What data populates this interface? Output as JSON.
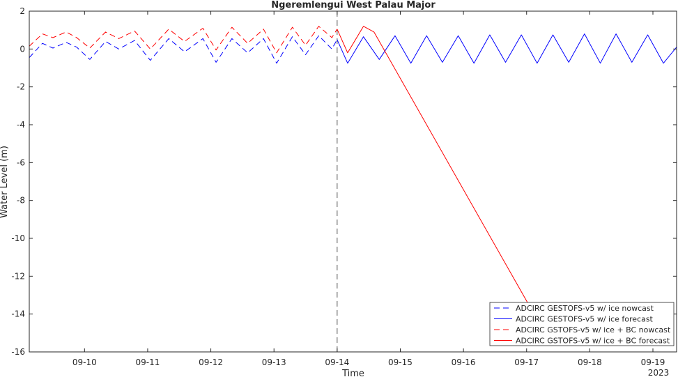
{
  "chart_data": {
    "type": "line",
    "title": "Ngeremlengui West Palau Major",
    "xlabel": "Time",
    "ylabel": "Water Level (m)",
    "year_label": "2023",
    "xlim": [
      "2023-09-09T03:00",
      "2023-09-19T09:00"
    ],
    "ylim": [
      -16,
      2
    ],
    "yticks": [
      2,
      0,
      -2,
      -4,
      -6,
      -8,
      -10,
      -12,
      -14,
      -16
    ],
    "xticks": [
      {
        "label": "09-10",
        "x": "2023-09-10"
      },
      {
        "label": "09-11",
        "x": "2023-09-11"
      },
      {
        "label": "09-12",
        "x": "2023-09-12"
      },
      {
        "label": "09-13",
        "x": "2023-09-13"
      },
      {
        "label": "09-14",
        "x": "2023-09-14"
      },
      {
        "label": "09-15",
        "x": "2023-09-15"
      },
      {
        "label": "09-16",
        "x": "2023-09-16"
      },
      {
        "label": "09-17",
        "x": "2023-09-17"
      },
      {
        "label": "09-18",
        "x": "2023-09-18"
      },
      {
        "label": "09-19",
        "x": "2023-09-19"
      }
    ],
    "grid": false,
    "nowcast_divider": "2023-09-14",
    "legend_position": "bottom-right",
    "series": [
      {
        "name": "ADCIRC GESTOFS-v5 w/ ice nowcast",
        "color": "#0000ff",
        "style": "dashed",
        "x": [
          "2023-09-09T03:00",
          "2023-09-09T08:00",
          "2023-09-09T12:00",
          "2023-09-09T17:00",
          "2023-09-09T21:00",
          "2023-09-10T02:00",
          "2023-09-10T08:00",
          "2023-09-10T13:00",
          "2023-09-10T19:00",
          "2023-09-11T01:00",
          "2023-09-11T08:00",
          "2023-09-11T14:00",
          "2023-09-11T21:00",
          "2023-09-12T02:00",
          "2023-09-12T08:00",
          "2023-09-12T14:00",
          "2023-09-12T20:00",
          "2023-09-13T01:00",
          "2023-09-13T07:00",
          "2023-09-13T12:00",
          "2023-09-13T17:00",
          "2023-09-13T22:00",
          "2023-09-14T00:00"
        ],
        "y": [
          -0.45,
          0.3,
          0.05,
          0.35,
          0.1,
          -0.55,
          0.4,
          0.0,
          0.45,
          -0.6,
          0.55,
          -0.15,
          0.55,
          -0.7,
          0.55,
          -0.2,
          0.55,
          -0.75,
          0.65,
          -0.3,
          0.7,
          0.0,
          0.5
        ]
      },
      {
        "name": "ADCIRC GESTOFS-v5 w/ ice forecast",
        "color": "#0000ff",
        "style": "solid",
        "x": [
          "2023-09-14T00:00",
          "2023-09-14T04:00",
          "2023-09-14T10:00",
          "2023-09-14T16:00",
          "2023-09-14T22:00",
          "2023-09-15T04:00",
          "2023-09-15T10:00",
          "2023-09-15T16:00",
          "2023-09-15T22:00",
          "2023-09-16T04:00",
          "2023-09-16T10:00",
          "2023-09-16T16:00",
          "2023-09-16T22:00",
          "2023-09-17T04:00",
          "2023-09-17T10:00",
          "2023-09-17T16:00",
          "2023-09-17T22:00",
          "2023-09-18T04:00",
          "2023-09-18T10:00",
          "2023-09-18T16:00",
          "2023-09-18T22:00",
          "2023-09-19T04:00",
          "2023-09-19T09:00"
        ],
        "y": [
          0.5,
          -0.75,
          0.65,
          -0.55,
          0.7,
          -0.75,
          0.7,
          -0.7,
          0.7,
          -0.75,
          0.75,
          -0.7,
          0.75,
          -0.75,
          0.75,
          -0.7,
          0.8,
          -0.75,
          0.8,
          -0.7,
          0.75,
          -0.75,
          0.1
        ]
      },
      {
        "name": "ADCIRC GSTOFS-v5 w/ ice + BC nowcast",
        "color": "#ff0000",
        "style": "dashed",
        "x": [
          "2023-09-09T03:00",
          "2023-09-09T08:00",
          "2023-09-09T12:00",
          "2023-09-09T17:00",
          "2023-09-09T21:00",
          "2023-09-10T02:00",
          "2023-09-10T08:00",
          "2023-09-10T13:00",
          "2023-09-10T19:00",
          "2023-09-11T01:00",
          "2023-09-11T08:00",
          "2023-09-11T14:00",
          "2023-09-11T21:00",
          "2023-09-12T02:00",
          "2023-09-12T08:00",
          "2023-09-12T14:00",
          "2023-09-12T20:00",
          "2023-09-13T01:00",
          "2023-09-13T07:00",
          "2023-09-13T12:00",
          "2023-09-13T17:00",
          "2023-09-13T22:00",
          "2023-09-14T00:00"
        ],
        "y": [
          0.15,
          0.8,
          0.6,
          0.9,
          0.6,
          0.05,
          0.9,
          0.55,
          0.95,
          0.0,
          1.05,
          0.4,
          1.1,
          -0.05,
          1.15,
          0.3,
          1.05,
          -0.2,
          1.15,
          0.2,
          1.2,
          0.6,
          1.05
        ]
      },
      {
        "name": "ADCIRC GSTOFS-v5 w/ ice + BC forecast",
        "color": "#ff0000",
        "style": "solid",
        "x": [
          "2023-09-14T00:00",
          "2023-09-14T04:00",
          "2023-09-14T10:00",
          "2023-09-14T14:00",
          "2023-09-17T02:00"
        ],
        "y": [
          1.05,
          -0.2,
          1.2,
          0.9,
          -13.8
        ]
      }
    ]
  }
}
